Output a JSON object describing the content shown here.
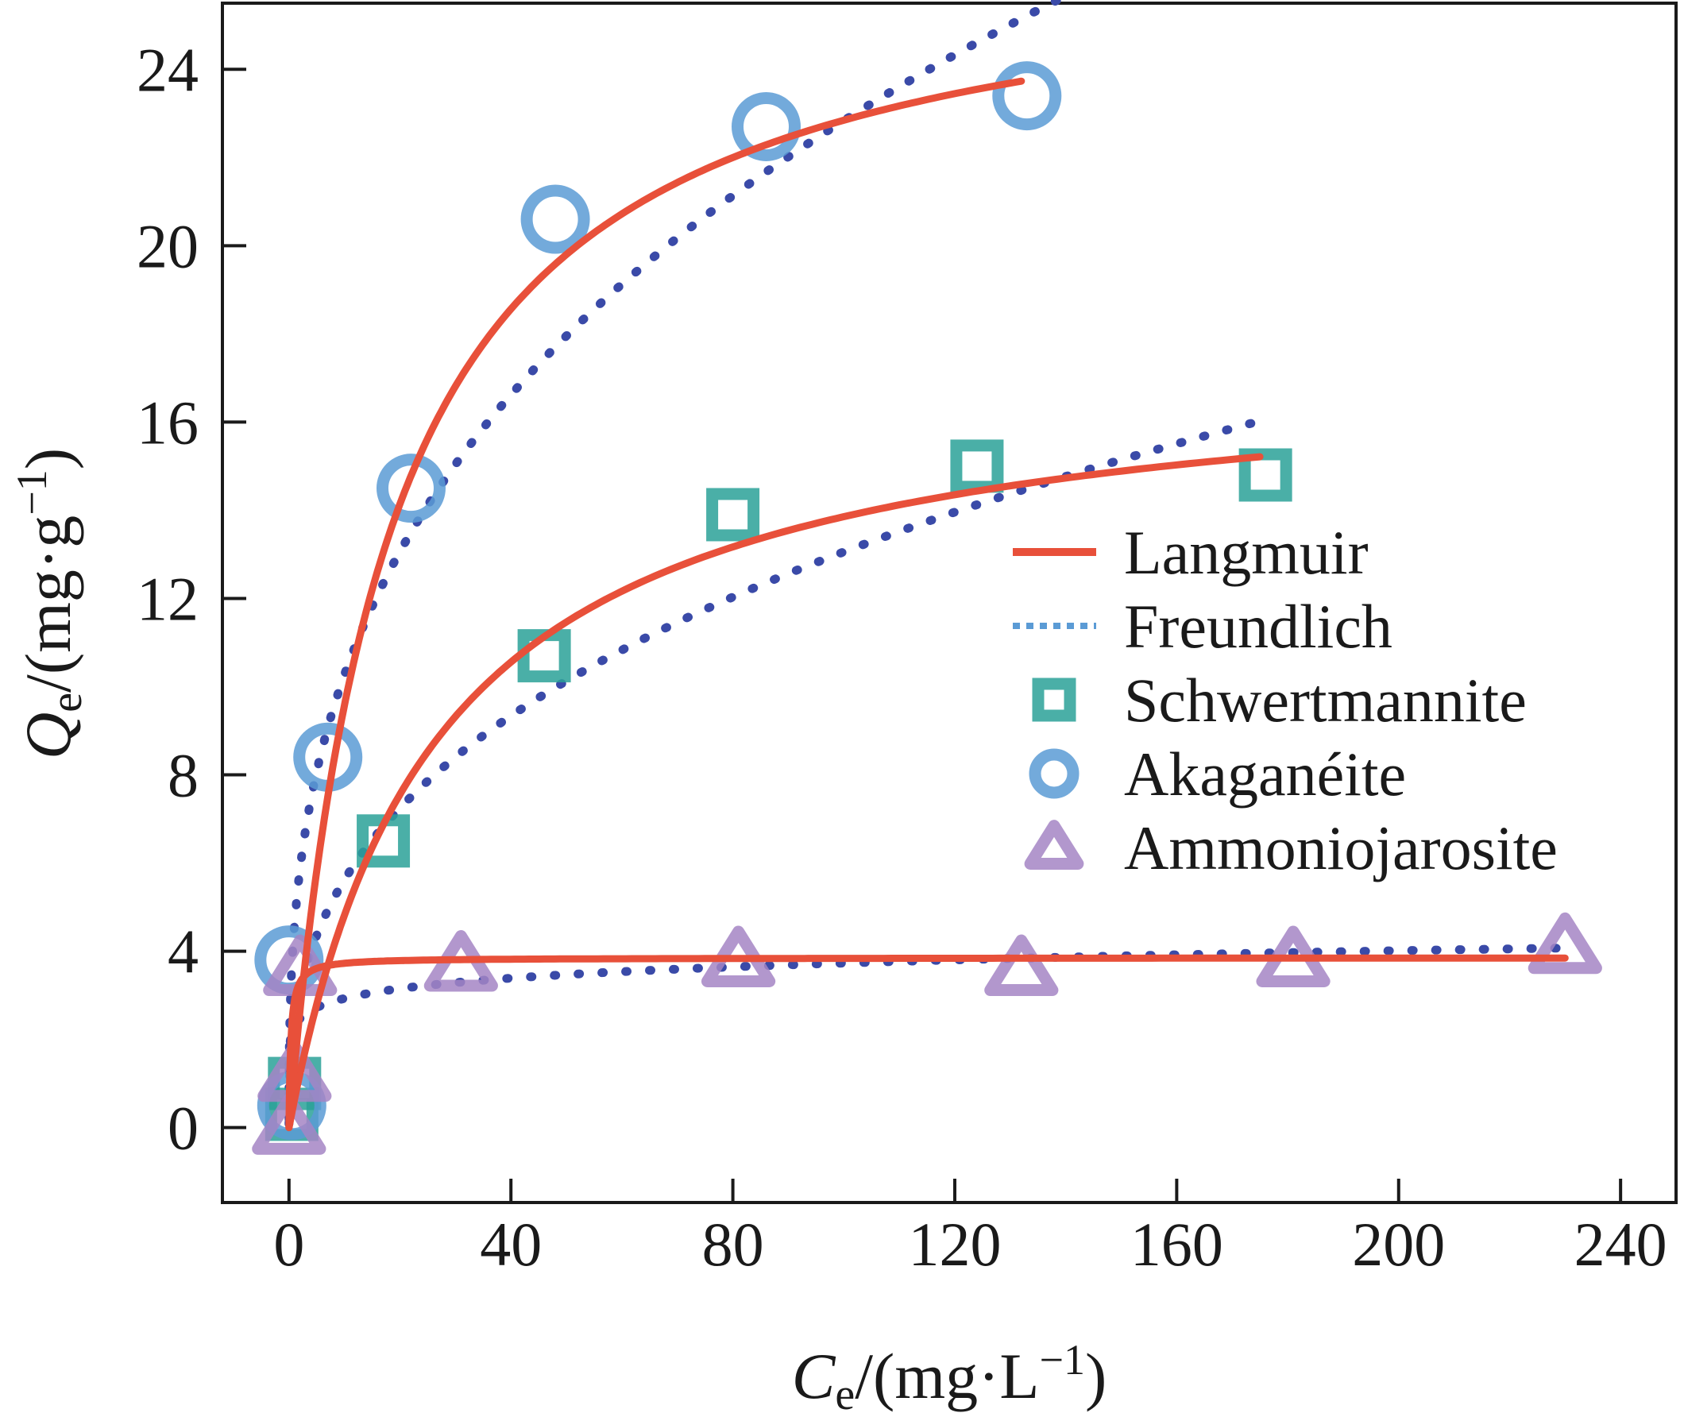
{
  "chart_data": {
    "type": "scatter",
    "x_axis": {
      "symbol": "C",
      "subscript": "e",
      "unit_prefix": "/(mg·L",
      "unit_sup": "−1",
      "unit_suffix": ")",
      "range": [
        -12,
        250
      ],
      "ticks": [
        0,
        40,
        80,
        120,
        160,
        200,
        240
      ]
    },
    "y_axis": {
      "symbol": "Q",
      "subscript": "e",
      "unit_prefix": "/(mg·g",
      "unit_sup": "−1",
      "unit_suffix": ")",
      "range": [
        -1.7,
        25.5
      ],
      "ticks": [
        0,
        4,
        8,
        12,
        16,
        20,
        24
      ]
    },
    "grid": false,
    "legend_position": "right",
    "legend": [
      {
        "name": "Langmuir",
        "kind": "line-solid",
        "color": "#e8503a"
      },
      {
        "name": "Freundlich",
        "kind": "line-dotted",
        "color": "#5b9bd5"
      },
      {
        "name": "Schwertmannite",
        "kind": "square",
        "color": "#2aa198"
      },
      {
        "name": "Akaganéite",
        "kind": "circle",
        "color": "#5b9bd5"
      },
      {
        "name": "Ammoniojarosite",
        "kind": "triangle",
        "color": "#a585c4"
      }
    ],
    "series": [
      {
        "name": "Schwertmannite",
        "marker": "square",
        "color": "#2aa198",
        "points": [
          [
            0.5,
            0.3
          ],
          [
            1,
            1.0
          ],
          [
            17,
            6.5
          ],
          [
            46,
            10.7
          ],
          [
            80,
            13.9
          ],
          [
            124,
            15.0
          ],
          [
            176,
            14.8
          ]
        ],
        "langmuir": {
          "qmax": 17.5,
          "kl": 0.038,
          "xmax": 175
        },
        "freundlich": {
          "kf": 2.42,
          "n": 0.366,
          "xmax": 175
        }
      },
      {
        "name": "Akaganéite",
        "marker": "circle",
        "color": "#5b9bd5",
        "points": [
          [
            0.5,
            0.5
          ],
          [
            0,
            3.8
          ],
          [
            7,
            8.4
          ],
          [
            22,
            14.5
          ],
          [
            48,
            20.6
          ],
          [
            86,
            22.7
          ],
          [
            133,
            23.4
          ]
        ],
        "langmuir": {
          "qmax": 27.0,
          "kl": 0.055,
          "xmax": 132
        },
        "freundlich": {
          "kf": 4.62,
          "n": 0.347,
          "xmax": 140
        }
      },
      {
        "name": "Ammoniojarosite",
        "marker": "triangle",
        "color": "#a585c4",
        "points": [
          [
            0,
            0
          ],
          [
            1,
            1.2
          ],
          [
            2,
            3.6
          ],
          [
            31,
            3.7
          ],
          [
            81,
            3.8
          ],
          [
            132,
            3.6
          ],
          [
            181,
            3.8
          ],
          [
            230,
            4.1
          ]
        ],
        "langmuir": {
          "qmax": 3.85,
          "kl": 3.0,
          "xmax": 230
        },
        "freundlich": {
          "kf": 2.3,
          "n": 0.105,
          "xmax": 230
        }
      }
    ]
  }
}
